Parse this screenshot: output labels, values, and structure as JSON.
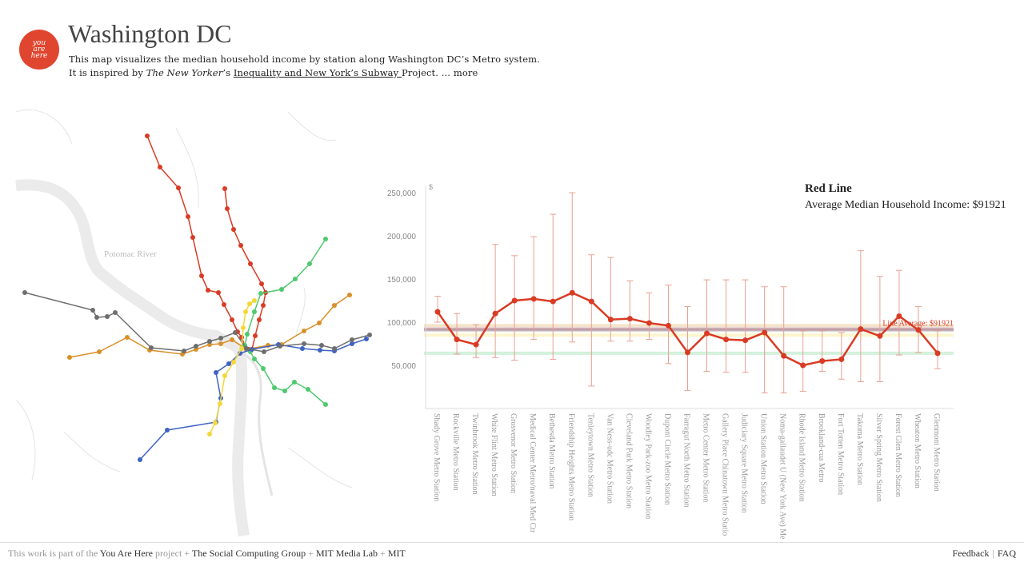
{
  "header": {
    "logo_text": "you\nare\nhere",
    "title": "Washington DC",
    "desc_line1": "This map visualizes the median household income by station along Washington DC’s Metro system.",
    "desc_prefix": "It is inspired by ",
    "desc_italic": "The New Yorker",
    "desc_mid": "’s ",
    "desc_link": "Inequality and New York’s Subway ",
    "desc_suffix": "Project. ",
    "more": "... more"
  },
  "map": {
    "river_label": "Potomac River",
    "colors": {
      "red": "#d93b24",
      "green": "#4fc96f",
      "orange": "#d9902a",
      "blue": "#3e63c4",
      "silver": "#6e6e6e",
      "yellow": "#f2d83a"
    }
  },
  "info": {
    "line_name": "Red Line",
    "average_label": "Average Median Household Income: $91921"
  },
  "chart_data": {
    "type": "line",
    "title": "",
    "ylabel": "$",
    "ylim": [
      0,
      260000
    ],
    "yticks": [
      50000,
      100000,
      150000,
      200000,
      250000
    ],
    "ytick_labels": [
      "50,000",
      "100,000",
      "150,000",
      "200,000",
      "250,000"
    ],
    "line_color": "#d93b24",
    "average_value": 91921,
    "average_label": "Line Average: $91921",
    "reference_lines": [
      {
        "color": "#4fc96f",
        "value": 64000
      },
      {
        "color": "#f2d83a",
        "value": 85000
      },
      {
        "color": "#d9902a",
        "value": 96000
      },
      {
        "color": "#3e63c4",
        "value": 92000
      },
      {
        "color": "#6e6e6e",
        "value": 90500
      },
      {
        "color": "#d93b24",
        "value": 91921
      }
    ],
    "categories": [
      "Shady Grove Metro Station",
      "Rockville Metro Station",
      "Twinbrook Metro Station",
      "White Flint Metro Station",
      "Grosvenor Metro Station",
      "Medical Center Metro/naval Med Ctr",
      "Bethesda Metro Station",
      "Friendship Heights Metro Station",
      "Tenleytown Metro Station",
      "Van Ness-udc Metro Station",
      "Cleveland Park Metro Station",
      "Woodley Park-zoo Metro Station",
      "Dupont Circle Metro Station",
      "Farragut North Metro Station",
      "Metro Center Metro Station",
      "Gallery Place Chinatown Metro Statio",
      "Judiciary Square Metro Station",
      "Union Station Metro Station",
      "Noma-gallaudet U (New York Ave) Me",
      "Rhode Island Metro Station",
      "Brookland-cua Metro",
      "Fort Totten Metro Station",
      "Takoma Metro Station",
      "Silver Spring Metro Station",
      "Forest Glen Metro Station",
      "Wheaton Metro Station",
      "Glenmont Metro Station"
    ],
    "values": [
      112000,
      80000,
      74000,
      110000,
      125000,
      127000,
      124000,
      134000,
      124000,
      103000,
      104000,
      99000,
      96000,
      65000,
      87000,
      80000,
      79000,
      88000,
      61000,
      50000,
      55000,
      57000,
      92000,
      84000,
      107000,
      91000,
      64000
    ],
    "errors_high": [
      130000,
      110000,
      97000,
      190000,
      177000,
      199000,
      225000,
      250000,
      178000,
      175000,
      148000,
      134000,
      143000,
      118000,
      149000,
      149000,
      149000,
      141000,
      141000,
      90000,
      90000,
      88000,
      183000,
      153000,
      160000,
      118000,
      90000
    ],
    "errors_low": [
      100000,
      63000,
      59000,
      59000,
      56000,
      80000,
      57000,
      77000,
      26000,
      78000,
      78000,
      80000,
      52000,
      21000,
      43000,
      42000,
      42000,
      18000,
      18000,
      20000,
      43000,
      34000,
      31000,
      31000,
      62000,
      65000,
      46000
    ]
  },
  "footer": {
    "prefix": "This work is part of the ",
    "you_are_here": "You Are Here",
    "project": " project + ",
    "group": "The Social Computing Group",
    "plus1": " + ",
    "lab": "MIT Media Lab",
    "plus2": " + ",
    "mit": "MIT",
    "feedback": "Feedback",
    "sep": "|",
    "faq": "FAQ"
  }
}
